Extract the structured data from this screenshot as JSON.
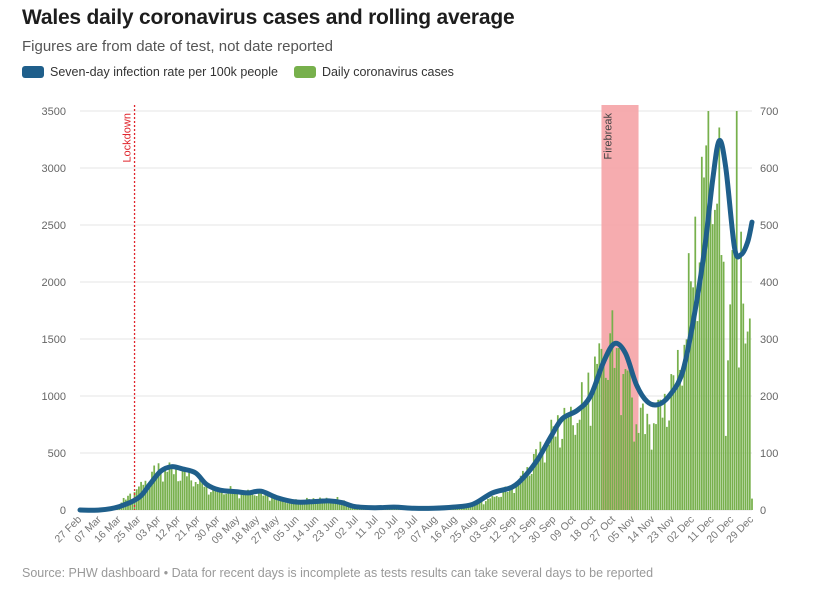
{
  "header": {
    "title": "Wales daily coronavirus cases and rolling average",
    "subtitle": "Figures are from date of test, not date reported"
  },
  "legend": [
    {
      "label": "Seven-day infection rate per 100k people",
      "color": "#1f5f8b"
    },
    {
      "label": "Daily coronavirus cases",
      "color": "#77b04c"
    }
  ],
  "footer": {
    "source": "Source: PHW dashboard • Data for recent days is incomplete as tests results can take several days to be reported"
  },
  "chart_data": {
    "type": "bar+line",
    "x_tick_labels": [
      "27 Feb",
      "07 Mar",
      "16 Mar",
      "25 Mar",
      "03 Apr",
      "12 Apr",
      "21 Apr",
      "30 Apr",
      "09 May",
      "18 May",
      "27 May",
      "05 Jun",
      "14 Jun",
      "23 Jun",
      "02 Jul",
      "11 Jul",
      "20 Jul",
      "29 Jul",
      "07 Aug",
      "16 Aug",
      "25 Aug",
      "03 Sep",
      "12 Sep",
      "21 Sep",
      "30 Sep",
      "09 Oct",
      "18 Oct",
      "27 Oct",
      "05 Nov",
      "14 Nov",
      "23 Nov",
      "02 Dec",
      "11 Dec",
      "20 Dec",
      "29 Dec"
    ],
    "x_range": [
      "2020-02-27",
      "2020-12-31"
    ],
    "y_left": {
      "label": "Daily coronavirus cases",
      "ticks": [
        0,
        500,
        1000,
        1500,
        2000,
        2500,
        3000,
        3500
      ],
      "range": [
        0,
        3500
      ]
    },
    "y_right": {
      "label": "Seven-day infection rate per 100k people",
      "ticks": [
        0,
        100,
        200,
        300,
        400,
        500,
        600,
        700
      ],
      "range": [
        0,
        700
      ]
    },
    "grid": "horizontal",
    "annotations": [
      {
        "type": "line",
        "label": "Lockdown",
        "date": "2020-03-23",
        "color": "#e0262d"
      },
      {
        "type": "band",
        "label": "Firebreak",
        "start": "2020-10-23",
        "end": "2020-11-09",
        "color": "#f5a3a6"
      }
    ],
    "series": [
      {
        "name": "Daily coronavirus cases",
        "type": "bar",
        "axis": "left",
        "color": "#77b04c",
        "keypoints": [
          [
            "2020-02-28",
            1
          ],
          [
            "2020-03-10",
            10
          ],
          [
            "2020-03-16",
            50
          ],
          [
            "2020-03-20",
            120
          ],
          [
            "2020-03-25",
            200
          ],
          [
            "2020-03-30",
            300
          ],
          [
            "2020-04-03",
            370
          ],
          [
            "2020-04-08",
            370
          ],
          [
            "2020-04-14",
            330
          ],
          [
            "2020-04-20",
            270
          ],
          [
            "2020-04-27",
            190
          ],
          [
            "2020-05-04",
            170
          ],
          [
            "2020-05-11",
            160
          ],
          [
            "2020-05-18",
            160
          ],
          [
            "2020-05-25",
            120
          ],
          [
            "2020-06-01",
            80
          ],
          [
            "2020-06-10",
            90
          ],
          [
            "2020-06-18",
            100
          ],
          [
            "2020-06-25",
            90
          ],
          [
            "2020-07-02",
            40
          ],
          [
            "2020-07-10",
            25
          ],
          [
            "2020-07-20",
            25
          ],
          [
            "2020-07-29",
            20
          ],
          [
            "2020-08-07",
            20
          ],
          [
            "2020-08-16",
            30
          ],
          [
            "2020-08-25",
            40
          ],
          [
            "2020-09-03",
            110
          ],
          [
            "2020-09-10",
            180
          ],
          [
            "2020-09-16",
            280
          ],
          [
            "2020-09-22",
            450
          ],
          [
            "2020-09-28",
            620
          ],
          [
            "2020-10-04",
            780
          ],
          [
            "2020-10-09",
            830
          ],
          [
            "2020-10-14",
            900
          ],
          [
            "2020-10-19",
            1200
          ],
          [
            "2020-10-24",
            1450
          ],
          [
            "2020-10-29",
            1400
          ],
          [
            "2020-11-03",
            1250
          ],
          [
            "2020-11-08",
            950
          ],
          [
            "2020-11-12",
            750
          ],
          [
            "2020-11-16",
            800
          ],
          [
            "2020-11-21",
            950
          ],
          [
            "2020-11-26",
            1150
          ],
          [
            "2020-12-01",
            1700
          ],
          [
            "2020-12-05",
            2300
          ],
          [
            "2020-12-08",
            2800
          ],
          [
            "2020-12-11",
            3200
          ],
          [
            "2020-12-14",
            3150
          ],
          [
            "2020-12-18",
            2200
          ],
          [
            "2020-12-21",
            2000
          ],
          [
            "2020-12-23",
            2400
          ],
          [
            "2020-12-26",
            2600
          ],
          [
            "2020-12-28",
            1900
          ],
          [
            "2020-12-30",
            1200
          ],
          [
            "2020-12-31",
            500
          ]
        ],
        "notable_days": [
          [
            "2020-12-11",
            3500
          ],
          [
            "2020-12-24",
            3500
          ],
          [
            "2020-12-25",
            1250
          ],
          [
            "2020-12-19",
            650
          ],
          [
            "2020-10-27",
            1550
          ],
          [
            "2020-11-07",
            600
          ],
          [
            "2020-12-31",
            100
          ],
          [
            "2020-12-30",
            1680
          ]
        ]
      },
      {
        "name": "Seven-day infection rate per 100k people",
        "type": "line",
        "axis": "right",
        "color": "#1f5f8b",
        "points": [
          [
            "2020-02-27",
            0
          ],
          [
            "2020-03-07",
            0
          ],
          [
            "2020-03-16",
            6
          ],
          [
            "2020-03-25",
            22
          ],
          [
            "2020-03-30",
            45
          ],
          [
            "2020-04-04",
            68
          ],
          [
            "2020-04-09",
            76
          ],
          [
            "2020-04-14",
            72
          ],
          [
            "2020-04-20",
            65
          ],
          [
            "2020-04-25",
            45
          ],
          [
            "2020-05-01",
            35
          ],
          [
            "2020-05-09",
            32
          ],
          [
            "2020-05-14",
            30
          ],
          [
            "2020-05-20",
            33
          ],
          [
            "2020-05-27",
            22
          ],
          [
            "2020-06-05",
            14
          ],
          [
            "2020-06-14",
            15
          ],
          [
            "2020-06-20",
            16
          ],
          [
            "2020-06-26",
            13
          ],
          [
            "2020-07-02",
            6
          ],
          [
            "2020-07-11",
            4
          ],
          [
            "2020-07-20",
            5
          ],
          [
            "2020-07-29",
            3
          ],
          [
            "2020-08-07",
            3
          ],
          [
            "2020-08-16",
            5
          ],
          [
            "2020-08-25",
            10
          ],
          [
            "2020-09-03",
            30
          ],
          [
            "2020-09-12",
            40
          ],
          [
            "2020-09-18",
            60
          ],
          [
            "2020-09-24",
            90
          ],
          [
            "2020-09-30",
            130
          ],
          [
            "2020-10-05",
            160
          ],
          [
            "2020-10-12",
            175
          ],
          [
            "2020-10-18",
            200
          ],
          [
            "2020-10-24",
            260
          ],
          [
            "2020-10-29",
            292
          ],
          [
            "2020-11-03",
            275
          ],
          [
            "2020-11-08",
            220
          ],
          [
            "2020-11-13",
            190
          ],
          [
            "2020-11-18",
            185
          ],
          [
            "2020-11-23",
            200
          ],
          [
            "2020-11-29",
            240
          ],
          [
            "2020-12-04",
            330
          ],
          [
            "2020-12-09",
            450
          ],
          [
            "2020-12-13",
            580
          ],
          [
            "2020-12-16",
            648
          ],
          [
            "2020-12-19",
            600
          ],
          [
            "2020-12-23",
            460
          ],
          [
            "2020-12-26",
            448
          ],
          [
            "2020-12-29",
            470
          ],
          [
            "2020-12-31",
            505
          ]
        ]
      }
    ]
  }
}
